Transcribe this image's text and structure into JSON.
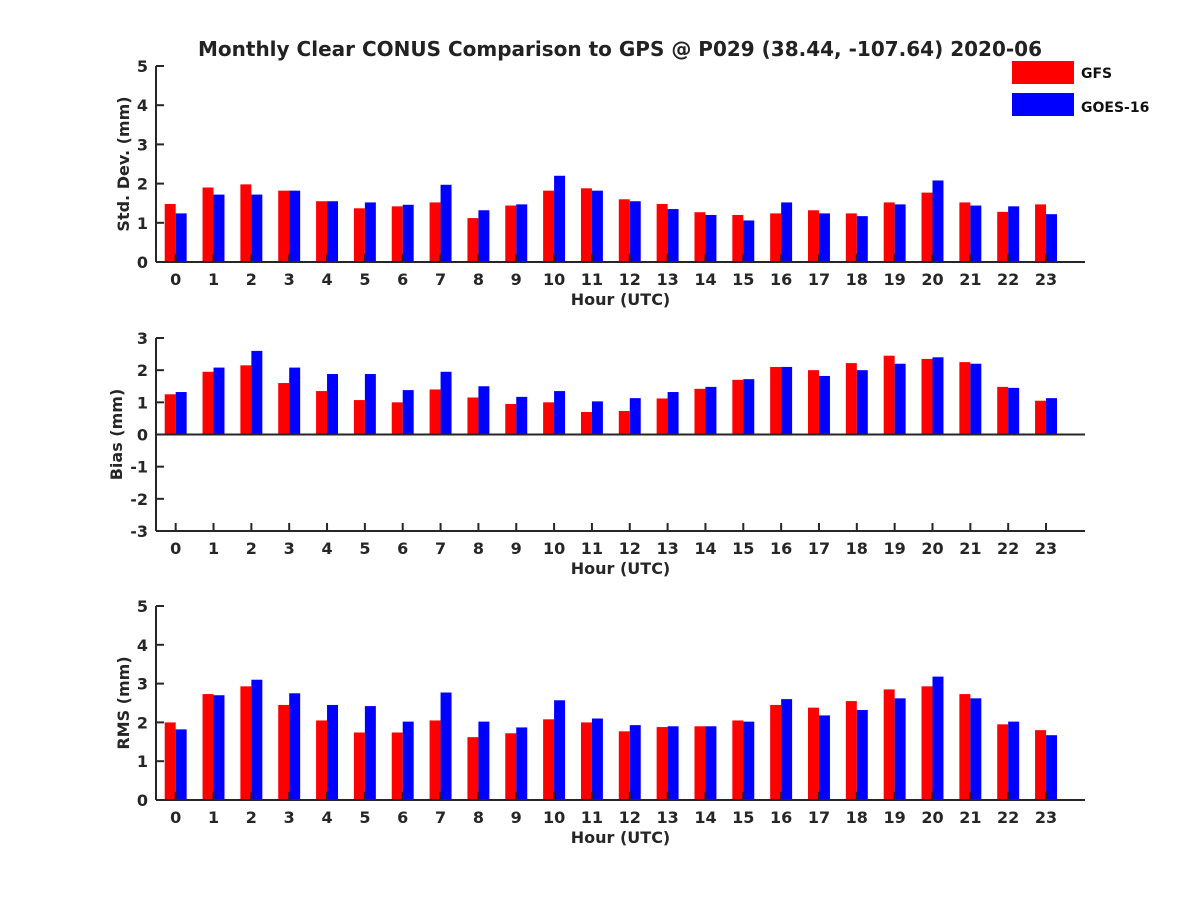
{
  "figure_title": "Monthly Clear CONUS Comparison to GPS @ P029 (38.44, -107.64) 2020-06",
  "legend": [
    {
      "label": "GFS",
      "color": "#ff0000"
    },
    {
      "label": "GOES-16",
      "color": "#0000ff"
    }
  ],
  "chart_data": [
    {
      "type": "bar",
      "title": "Monthly Clear CONUS Comparison to GPS @ P029 (38.44, -107.64) 2020-06",
      "xlabel": "Hour (UTC)",
      "ylabel": "Std. Dev. (mm)",
      "ylim": [
        0,
        5
      ],
      "yticks": [
        "0",
        "1",
        "2",
        "3",
        "4",
        "5"
      ],
      "categories": [
        "0",
        "1",
        "2",
        "3",
        "4",
        "5",
        "6",
        "7",
        "8",
        "9",
        "10",
        "11",
        "12",
        "13",
        "14",
        "15",
        "16",
        "17",
        "18",
        "19",
        "20",
        "21",
        "22",
        "23"
      ],
      "series": [
        {
          "name": "GFS",
          "color": "#ff0000",
          "values": [
            1.48,
            1.9,
            1.98,
            1.82,
            1.55,
            1.37,
            1.42,
            1.52,
            1.12,
            1.44,
            1.82,
            1.88,
            1.6,
            1.48,
            1.27,
            1.2,
            1.24,
            1.32,
            1.24,
            1.52,
            1.77,
            1.52,
            1.28,
            1.47
          ]
        },
        {
          "name": "GOES-16",
          "color": "#0000ff",
          "values": [
            1.24,
            1.72,
            1.72,
            1.82,
            1.55,
            1.52,
            1.46,
            1.97,
            1.32,
            1.47,
            2.2,
            1.82,
            1.55,
            1.35,
            1.2,
            1.06,
            1.52,
            1.24,
            1.17,
            1.47,
            2.08,
            1.44,
            1.42,
            1.22
          ]
        }
      ]
    },
    {
      "type": "bar",
      "xlabel": "Hour (UTC)",
      "ylabel": "Bias (mm)",
      "ylim": [
        -3,
        3
      ],
      "yticks": [
        "-3",
        "-2",
        "-1",
        "0",
        "1",
        "2",
        "3"
      ],
      "categories": [
        "0",
        "1",
        "2",
        "3",
        "4",
        "5",
        "6",
        "7",
        "8",
        "9",
        "10",
        "11",
        "12",
        "13",
        "14",
        "15",
        "16",
        "17",
        "18",
        "19",
        "20",
        "21",
        "22",
        "23"
      ],
      "series": [
        {
          "name": "GFS",
          "color": "#ff0000",
          "values": [
            1.25,
            1.95,
            2.15,
            1.6,
            1.35,
            1.07,
            1.0,
            1.4,
            1.15,
            0.95,
            1.0,
            0.7,
            0.73,
            1.12,
            1.42,
            1.7,
            2.1,
            2.0,
            2.22,
            2.45,
            2.35,
            2.25,
            1.48,
            1.05
          ]
        },
        {
          "name": "GOES-16",
          "color": "#0000ff",
          "values": [
            1.32,
            2.08,
            2.6,
            2.08,
            1.88,
            1.88,
            1.38,
            1.95,
            1.5,
            1.17,
            1.35,
            1.03,
            1.13,
            1.32,
            1.48,
            1.72,
            2.1,
            1.82,
            2.0,
            2.2,
            2.4,
            2.2,
            1.45,
            1.13
          ]
        }
      ]
    },
    {
      "type": "bar",
      "xlabel": "Hour (UTC)",
      "ylabel": "RMS (mm)",
      "ylim": [
        0,
        5
      ],
      "yticks": [
        "0",
        "1",
        "2",
        "3",
        "4",
        "5"
      ],
      "categories": [
        "0",
        "1",
        "2",
        "3",
        "4",
        "5",
        "6",
        "7",
        "8",
        "9",
        "10",
        "11",
        "12",
        "13",
        "14",
        "15",
        "16",
        "17",
        "18",
        "19",
        "20",
        "21",
        "22",
        "23"
      ],
      "series": [
        {
          "name": "GFS",
          "color": "#ff0000",
          "values": [
            2.0,
            2.73,
            2.93,
            2.45,
            2.05,
            1.74,
            1.74,
            2.05,
            1.62,
            1.72,
            2.08,
            2.0,
            1.77,
            1.88,
            1.9,
            2.05,
            2.45,
            2.38,
            2.55,
            2.85,
            2.93,
            2.73,
            1.95,
            1.8
          ]
        },
        {
          "name": "GOES-16",
          "color": "#0000ff",
          "values": [
            1.82,
            2.7,
            3.1,
            2.75,
            2.45,
            2.42,
            2.02,
            2.77,
            2.02,
            1.87,
            2.57,
            2.1,
            1.93,
            1.9,
            1.9,
            2.02,
            2.6,
            2.18,
            2.32,
            2.62,
            3.18,
            2.62,
            2.02,
            1.67
          ]
        }
      ]
    }
  ]
}
